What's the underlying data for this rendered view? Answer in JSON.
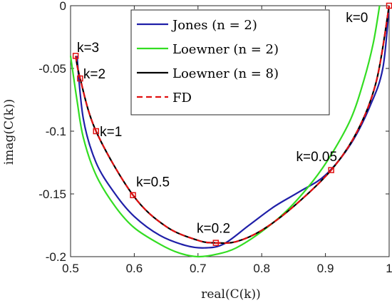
{
  "chart_data": {
    "type": "line",
    "title": "",
    "xlabel": "real(C(k))",
    "ylabel": "imag(C(k))",
    "xlim": [
      0.5,
      1.0
    ],
    "ylim": [
      -0.2,
      0.0
    ],
    "xticks": [
      0.5,
      0.6,
      0.7,
      0.8,
      0.9,
      1.0
    ],
    "xtick_labels": [
      "0.5",
      "0.6",
      "0.7",
      "0.8",
      "0.9",
      "1"
    ],
    "yticks": [
      0.0,
      -0.05,
      -0.1,
      -0.15,
      -0.2
    ],
    "ytick_labels": [
      "0",
      "-0.05",
      "-0.1",
      "-0.15",
      "-0.2"
    ],
    "grid": false,
    "legend_position": "top-center",
    "series": [
      {
        "name": "Jones (n = 2)",
        "color": "#1f1fa8",
        "style": "solid",
        "x": [
          0.51,
          0.52,
          0.54,
          0.57,
          0.6,
          0.64,
          0.68,
          0.71,
          0.74,
          0.78,
          0.82,
          0.86,
          0.9,
          0.94,
          0.97,
          0.99,
          1.0
        ],
        "y": [
          -0.04,
          -0.09,
          -0.125,
          -0.15,
          -0.168,
          -0.183,
          -0.191,
          -0.193,
          -0.19,
          -0.175,
          -0.16,
          -0.148,
          -0.135,
          -0.11,
          -0.08,
          -0.05,
          0.0
        ]
      },
      {
        "name": "Loewner (n = 2)",
        "color": "#33dd22",
        "style": "solid",
        "x": [
          0.5,
          0.51,
          0.52,
          0.54,
          0.57,
          0.6,
          0.64,
          0.67,
          0.7,
          0.73,
          0.76,
          0.8,
          0.84,
          0.88,
          0.91,
          0.94,
          0.96,
          0.975,
          0.985
        ],
        "y": [
          -0.04,
          -0.075,
          -0.105,
          -0.135,
          -0.16,
          -0.177,
          -0.19,
          -0.197,
          -0.2,
          -0.198,
          -0.193,
          -0.18,
          -0.163,
          -0.14,
          -0.118,
          -0.09,
          -0.06,
          -0.03,
          0.0
        ]
      },
      {
        "name": "Loewner (n = 8)",
        "color": "#000000",
        "style": "solid",
        "x": [
          0.508,
          0.515,
          0.54,
          0.598,
          0.65,
          0.7,
          0.728,
          0.76,
          0.8,
          0.85,
          0.909,
          0.95,
          0.98,
          1.0
        ],
        "y": [
          -0.04,
          -0.058,
          -0.1,
          -0.151,
          -0.176,
          -0.187,
          -0.189,
          -0.188,
          -0.179,
          -0.16,
          -0.131,
          -0.1,
          -0.06,
          0.0
        ]
      },
      {
        "name": "FD",
        "color": "#e01010",
        "style": "dashed",
        "x": [
          0.508,
          0.515,
          0.54,
          0.598,
          0.65,
          0.7,
          0.728,
          0.76,
          0.8,
          0.85,
          0.909,
          0.95,
          0.98,
          1.0
        ],
        "y": [
          -0.04,
          -0.058,
          -0.1,
          -0.151,
          -0.176,
          -0.187,
          -0.189,
          -0.188,
          -0.179,
          -0.16,
          -0.131,
          -0.1,
          -0.06,
          0.0
        ]
      }
    ],
    "markers": {
      "color": "#e01010",
      "shape": "square",
      "points": [
        {
          "x": 0.508,
          "y": -0.04
        },
        {
          "x": 0.515,
          "y": -0.058
        },
        {
          "x": 0.54,
          "y": -0.1
        },
        {
          "x": 0.598,
          "y": -0.151
        },
        {
          "x": 0.728,
          "y": -0.189
        },
        {
          "x": 0.909,
          "y": -0.131
        },
        {
          "x": 1.0,
          "y": 0.0
        }
      ]
    },
    "annotations": [
      {
        "text": "k=3",
        "x": 0.51,
        "y": -0.037
      },
      {
        "text": "k=2",
        "x": 0.52,
        "y": -0.058
      },
      {
        "text": "k=1",
        "x": 0.546,
        "y": -0.104
      },
      {
        "text": "k=0.5",
        "x": 0.603,
        "y": -0.144
      },
      {
        "text": "k=0.2",
        "x": 0.698,
        "y": -0.181
      },
      {
        "text": "k=0.05",
        "x": 0.854,
        "y": -0.124
      },
      {
        "text": "k=0",
        "x": 0.932,
        "y": -0.013
      }
    ]
  }
}
